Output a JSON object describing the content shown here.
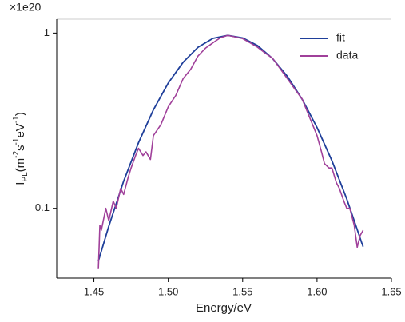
{
  "chart_data": {
    "type": "line",
    "scale_label": "×1e20",
    "xlabel": "Energy/eV",
    "ylabel_parts": [
      {
        "text": "I",
        "shift": "base"
      },
      {
        "text": "PL",
        "shift": "sub"
      },
      {
        "text": "(m",
        "shift": "base"
      },
      {
        "text": "-2",
        "shift": "sup"
      },
      {
        "text": "s",
        "shift": "base"
      },
      {
        "text": "-1",
        "shift": "sup"
      },
      {
        "text": "eV",
        "shift": "base"
      },
      {
        "text": "-1",
        "shift": "sup"
      },
      {
        "text": ")",
        "shift": "base"
      }
    ],
    "xlim": [
      1.425,
      1.65
    ],
    "xticks": [
      1.45,
      {
        "value": 1.5,
        "label": "1.50"
      },
      1.55,
      {
        "value": 1.6,
        "label": "1.60"
      },
      1.65
    ],
    "ylim": [
      0.04,
      1.2
    ],
    "yticks": [
      0.1,
      1
    ],
    "yscale": "log",
    "legend": "upper right",
    "series": [
      {
        "name": "fit",
        "color": "#1f3f9a",
        "x": [
          1.453,
          1.46,
          1.47,
          1.48,
          1.49,
          1.5,
          1.51,
          1.52,
          1.53,
          1.54,
          1.55,
          1.56,
          1.57,
          1.58,
          1.59,
          1.6,
          1.61,
          1.62,
          1.63,
          1.631
        ],
        "values": [
          0.05,
          0.079,
          0.143,
          0.237,
          0.365,
          0.519,
          0.682,
          0.83,
          0.933,
          0.97,
          0.938,
          0.848,
          0.717,
          0.567,
          0.419,
          0.289,
          0.187,
          0.113,
          0.0637,
          0.0604
        ]
      },
      {
        "name": "data",
        "color": "#a0409a",
        "x": [
          1.453,
          1.454,
          1.455,
          1.458,
          1.46,
          1.463,
          1.465,
          1.468,
          1.47,
          1.473,
          1.475,
          1.478,
          1.48,
          1.483,
          1.485,
          1.488,
          1.49,
          1.495,
          1.5,
          1.505,
          1.51,
          1.515,
          1.52,
          1.525,
          1.53,
          1.535,
          1.54,
          1.545,
          1.55,
          1.555,
          1.56,
          1.565,
          1.57,
          1.575,
          1.58,
          1.585,
          1.59,
          1.595,
          1.6,
          1.603,
          1.605,
          1.608,
          1.61,
          1.613,
          1.615,
          1.618,
          1.62,
          1.622,
          1.625,
          1.627,
          1.629,
          1.631
        ],
        "values": [
          0.045,
          0.08,
          0.075,
          0.1,
          0.085,
          0.11,
          0.1,
          0.13,
          0.12,
          0.15,
          0.17,
          0.2,
          0.22,
          0.2,
          0.21,
          0.19,
          0.26,
          0.3,
          0.38,
          0.44,
          0.55,
          0.62,
          0.74,
          0.82,
          0.88,
          0.94,
          0.97,
          0.95,
          0.93,
          0.88,
          0.83,
          0.77,
          0.72,
          0.63,
          0.55,
          0.48,
          0.42,
          0.33,
          0.26,
          0.21,
          0.18,
          0.17,
          0.17,
          0.14,
          0.13,
          0.11,
          0.1,
          0.1,
          0.08,
          0.06,
          0.07,
          0.075
        ]
      }
    ]
  }
}
